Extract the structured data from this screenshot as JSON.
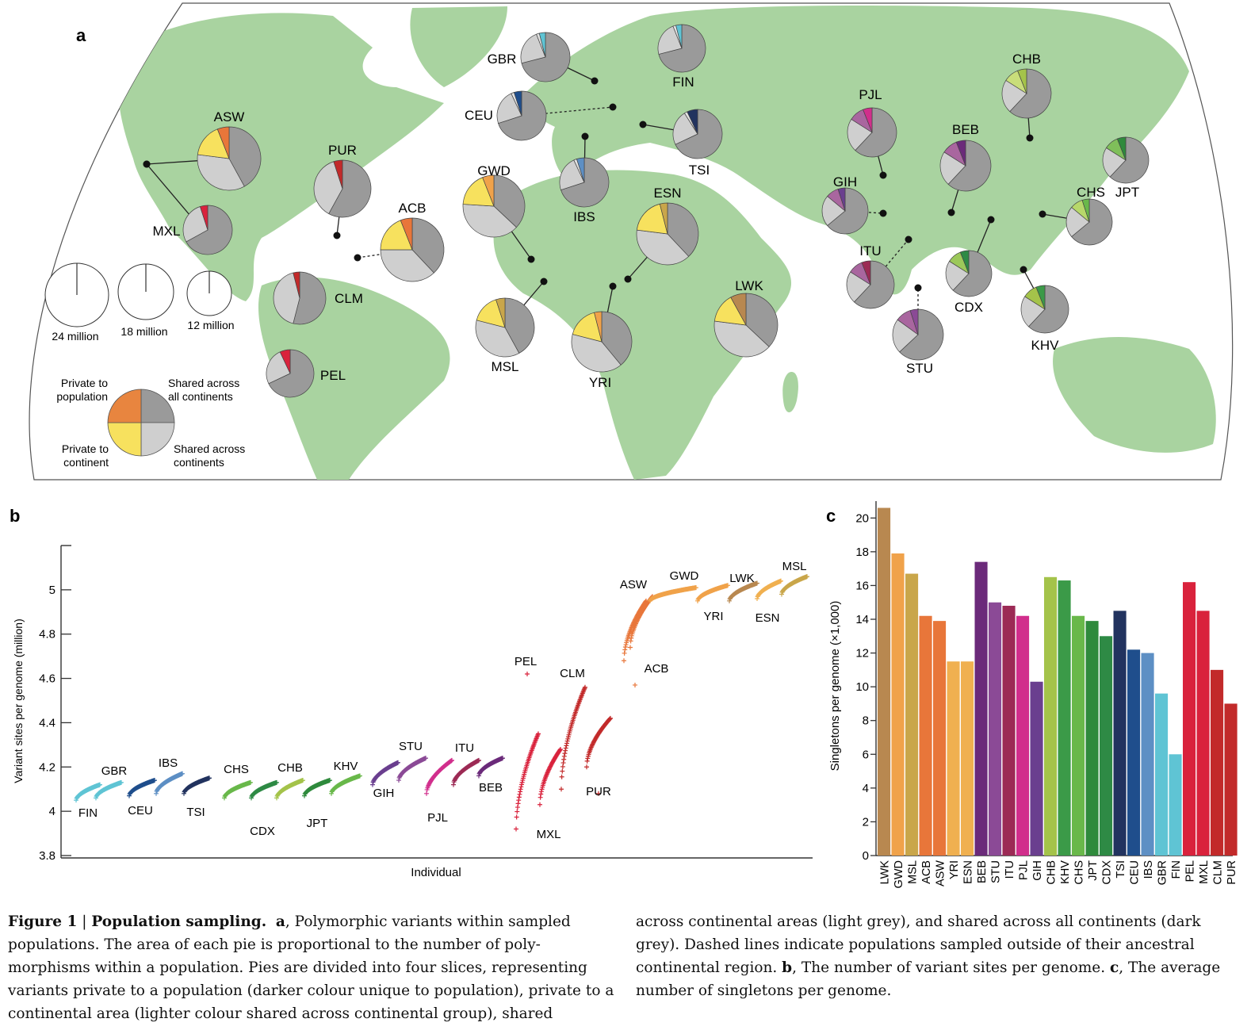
{
  "panels": {
    "a": "a",
    "b": "b",
    "c": "c"
  },
  "colors": {
    "land": "#a9d3a0",
    "ocean": "#ffffff",
    "shared_all": "#9a9a9a",
    "shared_cont": "#cfcfcf",
    "afr_cont": "#f7e15e",
    "amr_cont": "#f7e15e",
    "eur_cont": "#e2e2e2"
  },
  "map": {
    "pies": [
      {
        "code": "ASW",
        "color": "#e8763a",
        "cont": "#f7e15e",
        "slices": [
          0.06,
          0.17,
          0.35,
          0.42
        ]
      },
      {
        "code": "MXL",
        "color": "#d9223c",
        "cont": "#f3a8b0",
        "slices": [
          0.05,
          0.0,
          0.28,
          0.67
        ]
      },
      {
        "code": "PUR",
        "color": "#c22a2a",
        "cont": "#f3a8b0",
        "slices": [
          0.05,
          0.0,
          0.37,
          0.58
        ]
      },
      {
        "code": "ACB",
        "color": "#e8763a",
        "cont": "#f7e15e",
        "slices": [
          0.06,
          0.19,
          0.37,
          0.38
        ]
      },
      {
        "code": "CLM",
        "color": "#c22a2a",
        "cont": "#f3a8b0",
        "slices": [
          0.04,
          0.0,
          0.42,
          0.54
        ]
      },
      {
        "code": "PEL",
        "color": "#d9223c",
        "cont": "#f3a8b0",
        "slices": [
          0.07,
          0.0,
          0.25,
          0.68
        ]
      },
      {
        "code": "GBR",
        "color": "#5fc4d4",
        "cont": "#e2e2e2",
        "slices": [
          0.04,
          0.02,
          0.23,
          0.71
        ]
      },
      {
        "code": "FIN",
        "color": "#5fc4d4",
        "cont": "#e2e2e2",
        "slices": [
          0.04,
          0.02,
          0.23,
          0.71
        ]
      },
      {
        "code": "CEU",
        "color": "#1f4e8c",
        "cont": "#e2e2e2",
        "slices": [
          0.05,
          0.02,
          0.23,
          0.7
        ]
      },
      {
        "code": "TSI",
        "color": "#22335f",
        "cont": "#e2e2e2",
        "slices": [
          0.07,
          0.02,
          0.23,
          0.68
        ]
      },
      {
        "code": "IBS",
        "color": "#5d8fc4",
        "cont": "#e2e2e2",
        "slices": [
          0.05,
          0.02,
          0.23,
          0.7
        ]
      },
      {
        "code": "GWD",
        "color": "#f0a24a",
        "cont": "#f7e15e",
        "slices": [
          0.06,
          0.18,
          0.39,
          0.37
        ]
      },
      {
        "code": "ESN",
        "color": "#c9a64a",
        "cont": "#f7e15e",
        "slices": [
          0.04,
          0.19,
          0.39,
          0.38
        ]
      },
      {
        "code": "MSL",
        "color": "#c9a64a",
        "cont": "#f7e15e",
        "slices": [
          0.05,
          0.16,
          0.37,
          0.42
        ]
      },
      {
        "code": "YRI",
        "color": "#f0a24a",
        "cont": "#f7e15e",
        "slices": [
          0.04,
          0.17,
          0.4,
          0.39
        ]
      },
      {
        "code": "LWK",
        "color": "#b88850",
        "cont": "#f7e15e",
        "slices": [
          0.08,
          0.15,
          0.4,
          0.37
        ]
      },
      {
        "code": "PJL",
        "color": "#d12e8c",
        "cont": "#a9669f",
        "slices": [
          0.06,
          0.1,
          0.22,
          0.62
        ]
      },
      {
        "code": "BEB",
        "color": "#6b2a7a",
        "cont": "#a9669f",
        "slices": [
          0.06,
          0.1,
          0.22,
          0.62
        ]
      },
      {
        "code": "GIH",
        "color": "#6a3f8f",
        "cont": "#a9669f",
        "slices": [
          0.05,
          0.09,
          0.22,
          0.64
        ]
      },
      {
        "code": "ITU",
        "color": "#9c2a55",
        "cont": "#a9669f",
        "slices": [
          0.06,
          0.1,
          0.22,
          0.62
        ]
      },
      {
        "code": "STU",
        "color": "#8b4a96",
        "cont": "#a9669f",
        "slices": [
          0.05,
          0.1,
          0.22,
          0.63
        ]
      },
      {
        "code": "CHB",
        "color": "#a4c34a",
        "cont": "#c9de7a",
        "slices": [
          0.06,
          0.1,
          0.22,
          0.62
        ]
      },
      {
        "code": "JPT",
        "color": "#2f8a3c",
        "cont": "#7fbf5a",
        "slices": [
          0.06,
          0.1,
          0.22,
          0.62
        ]
      },
      {
        "code": "CHS",
        "color": "#69b84a",
        "cont": "#b7d86a",
        "slices": [
          0.05,
          0.09,
          0.22,
          0.64
        ]
      },
      {
        "code": "CDX",
        "color": "#2e8a45",
        "cont": "#9cc85a",
        "slices": [
          0.06,
          0.1,
          0.22,
          0.62
        ]
      },
      {
        "code": "KHV",
        "color": "#3b9a48",
        "cont": "#a4c34a",
        "slices": [
          0.06,
          0.1,
          0.22,
          0.62
        ]
      }
    ],
    "size_legend": [
      "24 million",
      "18 million",
      "12 million"
    ],
    "slice_legend": {
      "private_pop": [
        "Private to",
        "population"
      ],
      "shared_all": [
        "Shared across",
        "all continents"
      ],
      "private_cont": [
        "Private to",
        "continent"
      ],
      "shared_cont": [
        "Shared across",
        "continents"
      ]
    }
  },
  "chart_data": [
    {
      "type": "scatter",
      "title": "",
      "xlabel": "Individual",
      "ylabel": "Variant sites per genome (million)",
      "ylim": [
        3.8,
        5.2
      ],
      "yticks": [
        "3.8",
        "4",
        "4.2",
        "4.4",
        "4.6",
        "4.8",
        "5"
      ],
      "series": [
        {
          "name": "FIN",
          "color": "#5fc4d4",
          "min": 4.05,
          "max": 4.12
        },
        {
          "name": "GBR",
          "color": "#5fc4d4",
          "min": 4.06,
          "max": 4.13
        },
        {
          "name": "CEU",
          "color": "#1f4e8c",
          "min": 4.07,
          "max": 4.14
        },
        {
          "name": "IBS",
          "color": "#5d8fc4",
          "min": 4.08,
          "max": 4.17
        },
        {
          "name": "TSI",
          "color": "#22335f",
          "min": 4.08,
          "max": 4.15
        },
        {
          "name": "CHS",
          "color": "#69b84a",
          "min": 4.06,
          "max": 4.13
        },
        {
          "name": "CDX",
          "color": "#2e8a45",
          "min": 4.06,
          "max": 4.13
        },
        {
          "name": "CHB",
          "color": "#a4c34a",
          "min": 4.06,
          "max": 4.14
        },
        {
          "name": "JPT",
          "color": "#2f8a3c",
          "min": 4.07,
          "max": 4.14
        },
        {
          "name": "KHV",
          "color": "#69b84a",
          "min": 4.08,
          "max": 4.16
        },
        {
          "name": "GIH",
          "color": "#6a3f8f",
          "min": 4.12,
          "max": 4.22
        },
        {
          "name": "STU",
          "color": "#8b4a96",
          "min": 4.14,
          "max": 4.24
        },
        {
          "name": "PJL",
          "color": "#d12e8c",
          "min": 4.08,
          "max": 4.23
        },
        {
          "name": "ITU",
          "color": "#9c2a55",
          "min": 4.12,
          "max": 4.23
        },
        {
          "name": "BEB",
          "color": "#6b2a7a",
          "min": 4.16,
          "max": 4.24
        },
        {
          "name": "PEL",
          "color": "#d9223c",
          "min": 3.92,
          "max": 4.35,
          "outlier": 4.62
        },
        {
          "name": "MXL",
          "color": "#d9223c",
          "min": 4.03,
          "max": 4.28
        },
        {
          "name": "CLM",
          "color": "#c22a2a",
          "min": 4.1,
          "max": 4.56
        },
        {
          "name": "PUR",
          "color": "#c22a2a",
          "min": 4.2,
          "max": 4.42,
          "outlier": 4.08
        },
        {
          "name": "ACB",
          "color": "#e8763a",
          "min": 4.68,
          "max": 4.95,
          "outlier": 4.57
        },
        {
          "name": "ASW",
          "color": "#e8763a",
          "min": 4.74,
          "max": 4.97
        },
        {
          "name": "GWD",
          "color": "#f0a24a",
          "min": 4.95,
          "max": 5.01
        },
        {
          "name": "YRI",
          "color": "#f0a24a",
          "min": 4.95,
          "max": 5.02
        },
        {
          "name": "LWK",
          "color": "#b88850",
          "min": 4.95,
          "max": 5.03
        },
        {
          "name": "ESN",
          "color": "#f0b050",
          "min": 4.96,
          "max": 5.04
        },
        {
          "name": "MSL",
          "color": "#c9a64a",
          "min": 4.98,
          "max": 5.06
        }
      ]
    },
    {
      "type": "bar",
      "title": "",
      "xlabel": "",
      "ylabel": "Singletons per genome (×1,000)",
      "ylim": [
        0,
        21
      ],
      "yticks": [
        "0",
        "2",
        "4",
        "6",
        "8",
        "10",
        "12",
        "14",
        "16",
        "18",
        "20"
      ],
      "categories": [
        "LWK",
        "GWD",
        "MSL",
        "ACB",
        "ASW",
        "YRI",
        "ESN",
        "BEB",
        "STU",
        "ITU",
        "PJL",
        "GIH",
        "CHB",
        "KHV",
        "CHS",
        "JPT",
        "CDX",
        "TSI",
        "CEU",
        "IBS",
        "GBR",
        "FIN",
        "PEL",
        "MXL",
        "CLM",
        "PUR"
      ],
      "values": [
        20.6,
        17.9,
        16.7,
        14.2,
        13.9,
        11.5,
        11.5,
        17.4,
        15.0,
        14.8,
        14.2,
        10.3,
        16.5,
        16.3,
        14.2,
        13.9,
        13.0,
        14.5,
        12.2,
        12.0,
        9.6,
        6.0,
        16.2,
        14.5,
        11.0,
        9.0
      ],
      "colors": [
        "#b88850",
        "#f0a24a",
        "#c9a64a",
        "#e8763a",
        "#e8763a",
        "#f0b050",
        "#f0b050",
        "#6b2a7a",
        "#8b4a96",
        "#9c2a55",
        "#d12e8c",
        "#6a3f8f",
        "#a4c34a",
        "#3b9a48",
        "#69b84a",
        "#2f8a3c",
        "#2e8a45",
        "#22335f",
        "#1f4e8c",
        "#5d8fc4",
        "#5fc4d4",
        "#5fc4d4",
        "#d9223c",
        "#d9223c",
        "#c22a2a",
        "#c22a2a"
      ]
    }
  ],
  "caption": {
    "figure_label": "Figure 1",
    "figure_title": "Population sampling.",
    "left_a": "a",
    "left_text": ", Polymorphic variants within sampled populations. The area of each pie is proportional to the number of poly-morphisms within a population. Pies are divided into four slices, representing variants private to a population (darker colour unique to population), private to a continental area (lighter colour shared across continental group), shared",
    "right_text_1": "across continental areas (light grey), and shared across all continents (dark grey). Dashed lines indicate populations sampled outside of their ancestral continental region. ",
    "right_b": "b",
    "right_text_2": ", The number of variant sites per genome. ",
    "right_c": "c",
    "right_text_3": ", The average number of singletons per genome."
  }
}
